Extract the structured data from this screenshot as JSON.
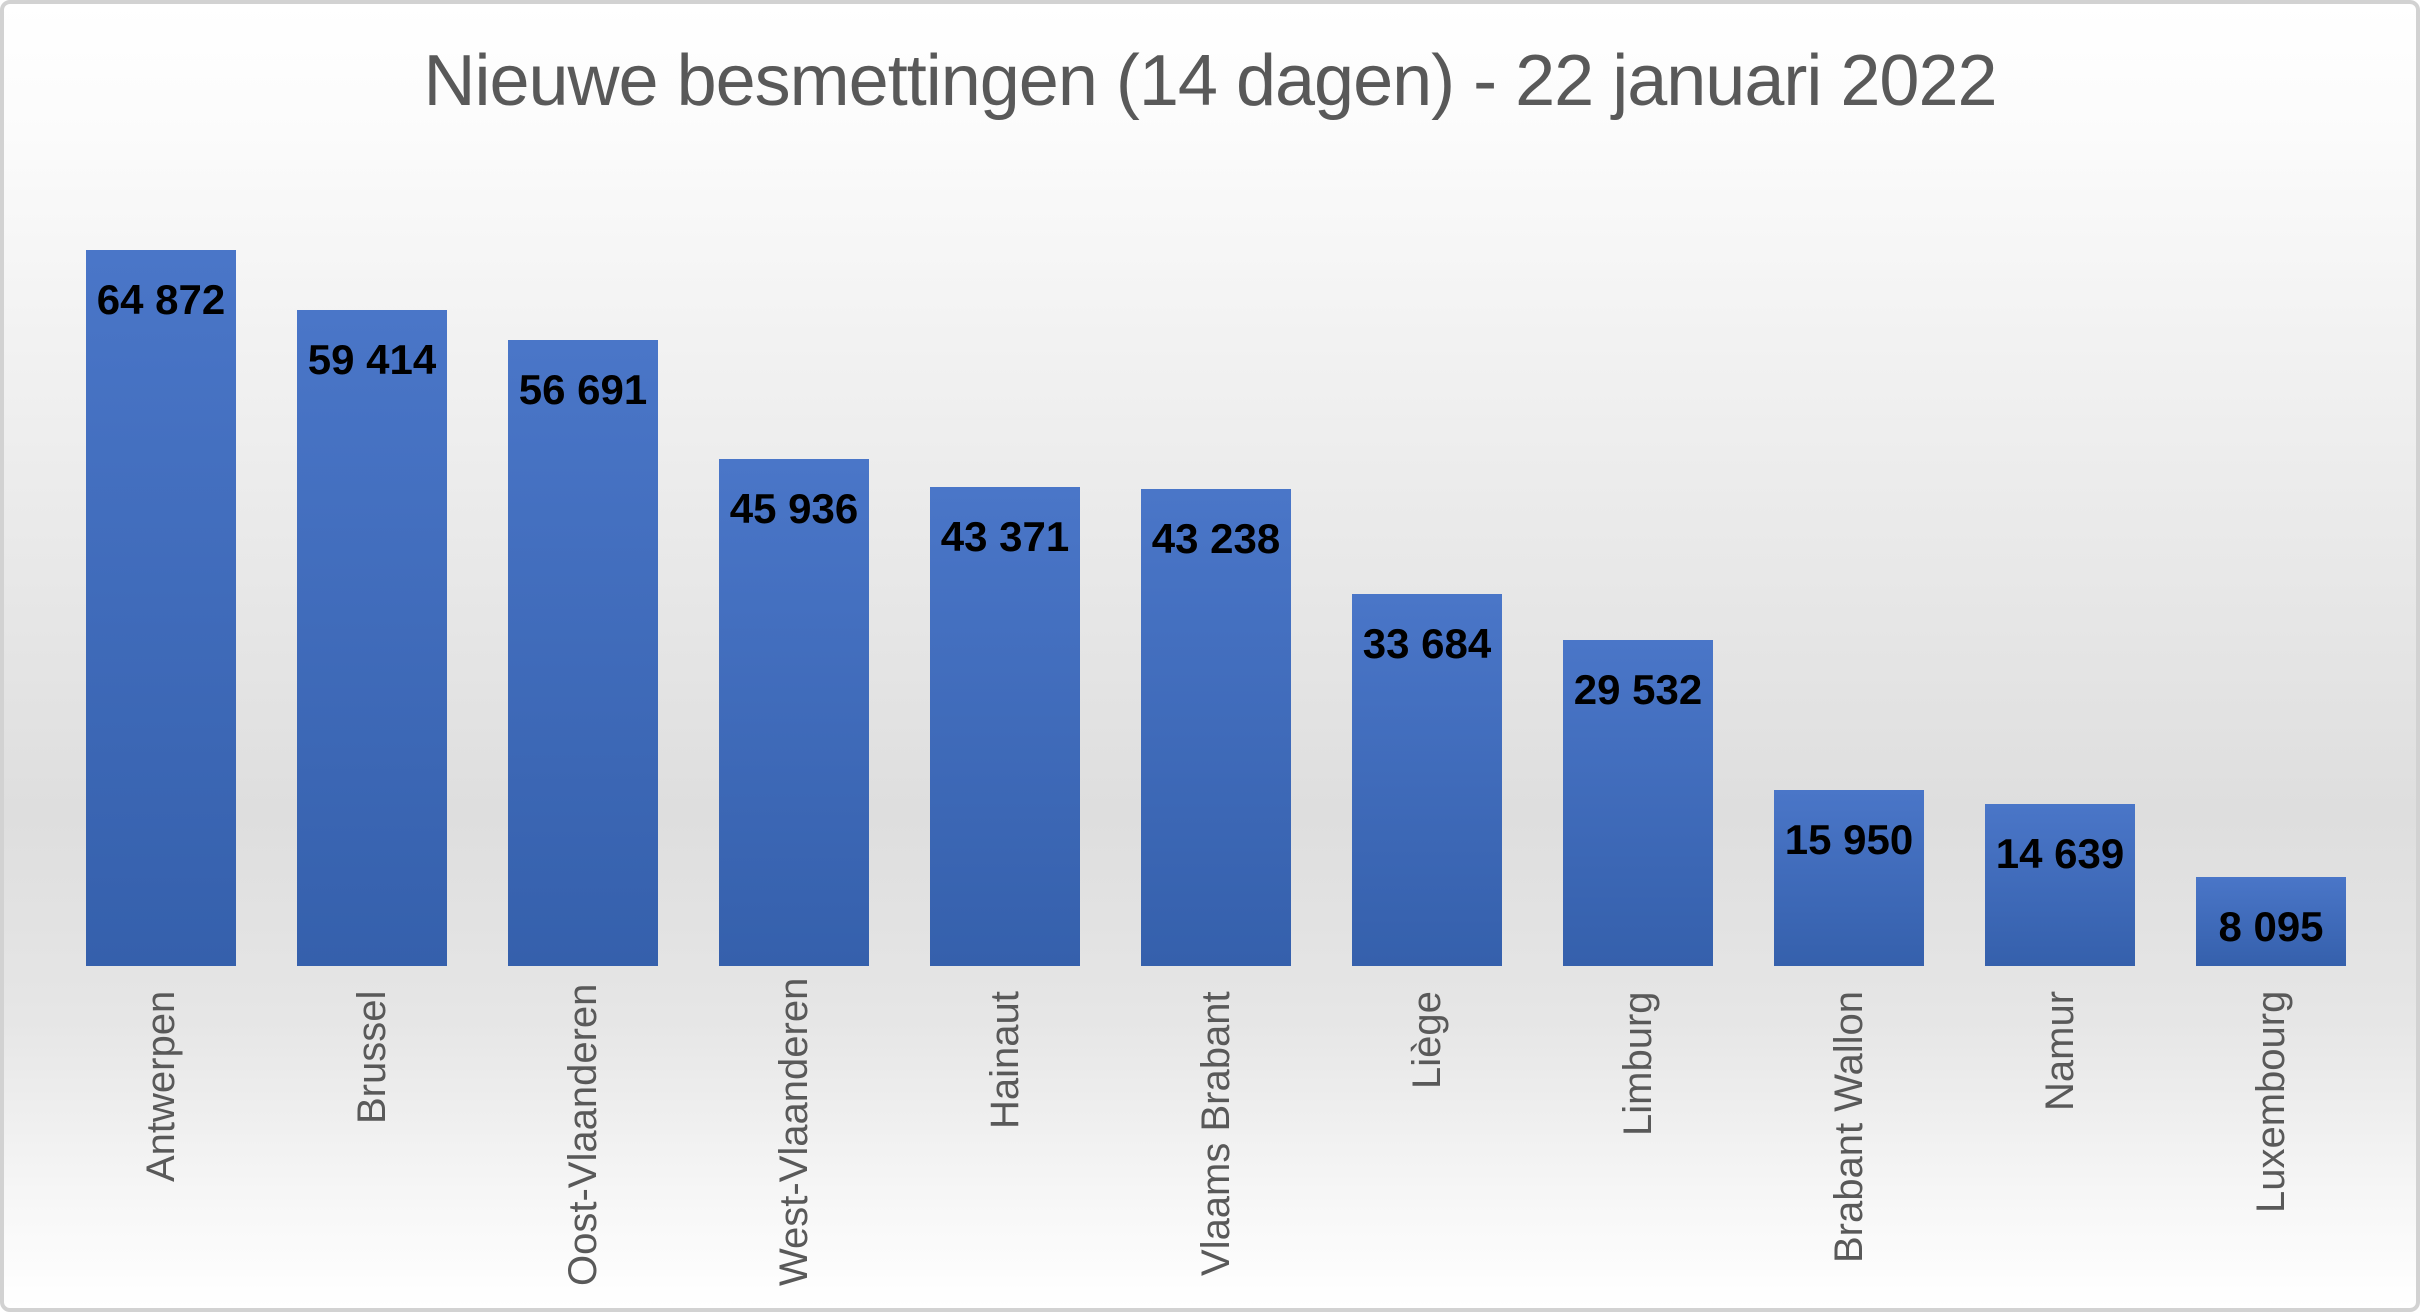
{
  "chart_data": {
    "type": "bar",
    "title": "Nieuwe besmettingen (14 dagen) - 22 januari 2022",
    "categories": [
      "Antwerpen",
      "Brussel",
      "Oost-Vlaanderen",
      "West-Vlaanderen",
      "Hainaut",
      "Vlaams Brabant",
      "Liège",
      "Limburg",
      "Brabant Wallon",
      "Namur",
      "Luxembourg"
    ],
    "values": [
      64872,
      59414,
      56691,
      45936,
      43371,
      43238,
      33684,
      29532,
      15950,
      14639,
      8095
    ],
    "value_labels": [
      "64 872",
      "59 414",
      "56 691",
      "45 936",
      "43 371",
      "43 238",
      "33 684",
      "29 532",
      "15 950",
      "14 639",
      "8 095"
    ],
    "xlabel": "",
    "ylabel": "",
    "ylim": [
      0,
      65000
    ],
    "grid": false,
    "legend": false,
    "axes_visible": false,
    "value_label_position": "inside-top",
    "category_label_rotation_deg": 90
  },
  "colors": {
    "bar_top": "#4A76C8",
    "bar_bottom": "#3560AC",
    "title_color": "#595959",
    "axis_label_color": "#595959",
    "value_label_color": "#000000"
  }
}
